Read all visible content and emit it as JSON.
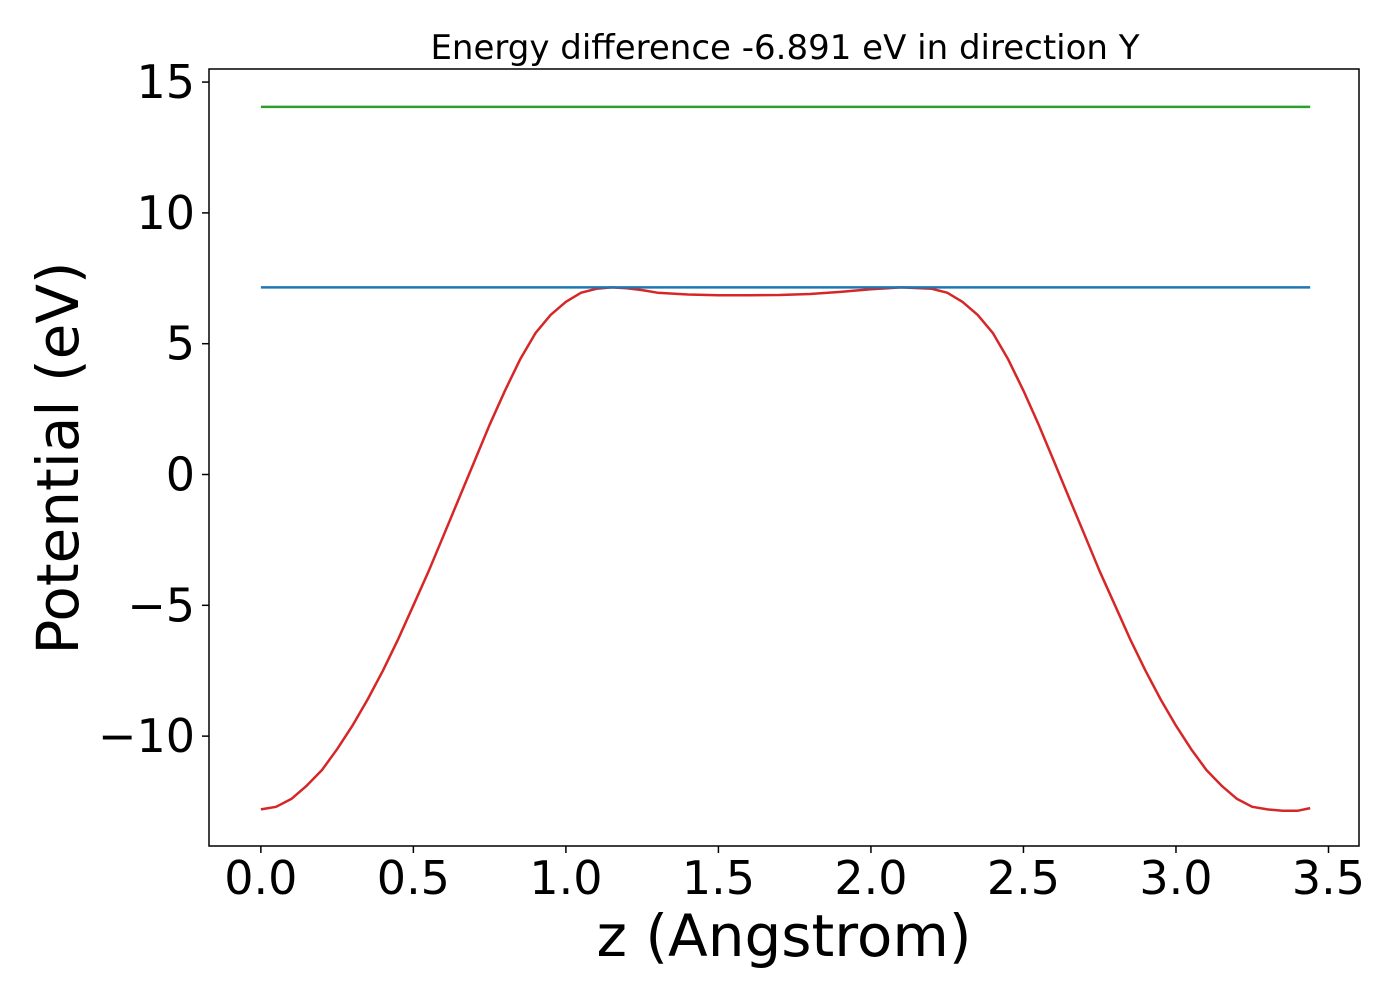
{
  "chart_data": {
    "type": "line",
    "title": "Energy difference -6.891 eV in direction Y",
    "xlabel": "z (Angstrom)",
    "ylabel": "Potential (eV)",
    "xlim": [
      -0.17,
      3.6
    ],
    "ylim": [
      -14.2,
      15.5
    ],
    "x_ticks": [
      0.0,
      0.5,
      1.0,
      1.5,
      2.0,
      2.5,
      3.0,
      3.5
    ],
    "x_tick_labels": [
      "0.0",
      "0.5",
      "1.0",
      "1.5",
      "2.0",
      "2.5",
      "3.0",
      "3.5"
    ],
    "y_ticks": [
      -10,
      -5,
      0,
      5,
      10,
      15
    ],
    "y_tick_labels": [
      "−10",
      "−5",
      "0",
      "5",
      "10",
      "15"
    ],
    "grid": false,
    "series": [
      {
        "color": "#d62728",
        "x": [
          0.0,
          0.05,
          0.1,
          0.15,
          0.2,
          0.25,
          0.3,
          0.35,
          0.4,
          0.45,
          0.5,
          0.55,
          0.6,
          0.65,
          0.7,
          0.75,
          0.8,
          0.85,
          0.9,
          0.95,
          1.0,
          1.05,
          1.1,
          1.15,
          1.2,
          1.25,
          1.3,
          1.4,
          1.5,
          1.6,
          1.7,
          1.8,
          1.9,
          2.0,
          2.1,
          2.2,
          2.25,
          2.3,
          2.35,
          2.4,
          2.45,
          2.5,
          2.55,
          2.6,
          2.65,
          2.7,
          2.75,
          2.8,
          2.85,
          2.9,
          2.95,
          3.0,
          3.05,
          3.1,
          3.15,
          3.2,
          3.25,
          3.3,
          3.35,
          3.4,
          3.44
        ],
        "y": [
          -12.8,
          -12.7,
          -12.4,
          -11.9,
          -11.3,
          -10.5,
          -9.6,
          -8.6,
          -7.5,
          -6.3,
          -5.0,
          -3.7,
          -2.3,
          -0.9,
          0.5,
          1.9,
          3.2,
          4.4,
          5.4,
          6.1,
          6.6,
          6.95,
          7.1,
          7.15,
          7.12,
          7.05,
          6.95,
          6.88,
          6.85,
          6.85,
          6.86,
          6.9,
          6.98,
          7.08,
          7.15,
          7.1,
          6.95,
          6.6,
          6.1,
          5.4,
          4.4,
          3.2,
          1.9,
          0.5,
          -0.9,
          -2.3,
          -3.7,
          -5.0,
          -6.3,
          -7.5,
          -8.6,
          -9.6,
          -10.5,
          -11.3,
          -11.9,
          -12.4,
          -12.7,
          -12.8,
          -12.85,
          -12.85,
          -12.75
        ]
      },
      {
        "color": "#1f77b4",
        "x": [
          0.0,
          3.44
        ],
        "y": [
          7.15,
          7.15
        ]
      },
      {
        "color": "#2ca02c",
        "x": [
          0.0,
          3.44
        ],
        "y": [
          14.05,
          14.05
        ]
      }
    ]
  }
}
